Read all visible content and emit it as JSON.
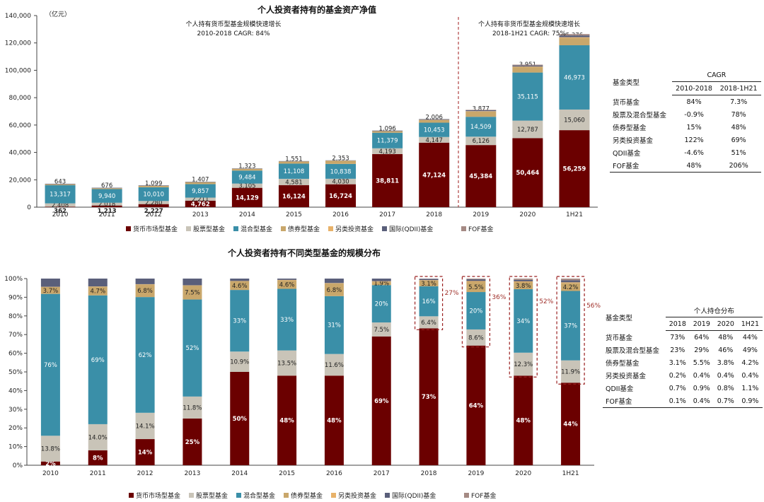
{
  "chart_data": [
    {
      "type": "bar",
      "stacked": true,
      "title": "个人投资者持有的基金资产净值",
      "unit_label": "（亿元）",
      "categories": [
        "2010",
        "2011",
        "2012",
        "2013",
        "2014",
        "2015",
        "2016",
        "2017",
        "2018",
        "2019",
        "2020",
        "1H21"
      ],
      "ylim": [
        0,
        140000
      ],
      "yticks": [
        "0",
        "20,000",
        "40,000",
        "60,000",
        "80,000",
        "100,000",
        "120,000",
        "140,000"
      ],
      "series": [
        {
          "name": "货币市场型基金",
          "color": "#6b0000",
          "values": [
            362,
            1213,
            2227,
            4762,
            14129,
            16124,
            16724,
            38811,
            47124,
            45384,
            50464,
            56259
          ],
          "labels": [
            "362",
            "1,213",
            "2,227",
            "4,762",
            "14,129",
            "16,124",
            "16,724",
            "38,811",
            "47,124",
            "45,384",
            "50,464",
            "56,259"
          ]
        },
        {
          "name": "股票型基金",
          "color": "#c9c4b8",
          "values": [
            2408,
            2018,
            2280,
            2211,
            3105,
            4581,
            4030,
            4193,
            4147,
            6126,
            12787,
            15060
          ],
          "labels": [
            "2,408",
            "2,018",
            "2,280",
            "2,211",
            "3,105",
            "4,581",
            "4,030",
            "4,193",
            "4,147",
            "6,126",
            "12,787",
            "15,060"
          ]
        },
        {
          "name": "混合型基金",
          "color": "#3a8fa8",
          "values": [
            13317,
            9940,
            10010,
            9857,
            9484,
            11108,
            10838,
            11379,
            10453,
            14509,
            35115,
            46973
          ],
          "labels": [
            "13,317",
            "9,940",
            "10,010",
            "9,857",
            "9,484",
            "11,108",
            "10,838",
            "11,379",
            "10,453",
            "14,509",
            "35,115",
            "46,973"
          ]
        },
        {
          "name": "债券型基金",
          "color": "#c9a76b",
          "values": [
            643,
            676,
            1099,
            1407,
            1323,
            1551,
            2353,
            1096,
            2006,
            3877,
            3951,
            5376
          ],
          "labels": [
            "643",
            "676",
            "1,099",
            "1,407",
            "1,323",
            "1,551",
            "2,353",
            "1,096",
            "2,006",
            "3,877",
            "3,951",
            "5,376"
          ]
        },
        {
          "name": "另类投资基金",
          "color": "#e8b26a",
          "values": [
            20,
            20,
            20,
            20,
            50,
            60,
            60,
            80,
            120,
            250,
            400,
            500
          ],
          "labels": []
        },
        {
          "name": "国际(QDII)基金",
          "color": "#5a5f7a",
          "values": [
            350,
            320,
            320,
            300,
            250,
            250,
            200,
            400,
            450,
            700,
            800,
            1300
          ],
          "labels": []
        },
        {
          "name": "FOF基金",
          "color": "#a58a84",
          "values": [
            0,
            0,
            0,
            0,
            0,
            0,
            0,
            20,
            70,
            300,
            600,
            1000
          ],
          "labels": []
        }
      ],
      "annotations": [
        {
          "text": "个人持有货币型基金规模快速增长",
          "sub": "2010-2018 CAGR: 84%"
        },
        {
          "text": "个人持有非货币型基金规模快速增长",
          "sub": "2018-1H21 CAGR: 75%"
        }
      ],
      "legend_position": "bottom"
    },
    {
      "type": "bar",
      "stacked": true,
      "percent": true,
      "title": "个人投资者持有不同类型基金的规模分布",
      "categories": [
        "2010",
        "2011",
        "2012",
        "2013",
        "2014",
        "2015",
        "2016",
        "2017",
        "2018",
        "2019",
        "2020",
        "1H21"
      ],
      "ylim": [
        0,
        100
      ],
      "yticks": [
        "0%",
        "10%",
        "20%",
        "30%",
        "40%",
        "50%",
        "60%",
        "70%",
        "80%",
        "90%",
        "100%"
      ],
      "series": [
        {
          "name": "货币市场型基金",
          "color": "#6b0000",
          "values": [
            2,
            8,
            14,
            25,
            50,
            48,
            48,
            69,
            73,
            64,
            48,
            44
          ],
          "labels": [
            "2%",
            "8%",
            "14%",
            "25%",
            "50%",
            "48%",
            "48%",
            "69%",
            "73%",
            "64%",
            "48%",
            "44%"
          ]
        },
        {
          "name": "股票型基金",
          "color": "#c9c4b8",
          "values": [
            13.8,
            14.0,
            14.1,
            11.8,
            10.9,
            13.5,
            11.6,
            7.5,
            6.4,
            8.6,
            12.3,
            11.9
          ],
          "labels": [
            "13.8%",
            "14.0%",
            "14.1%",
            "11.8%",
            "10.9%",
            "13.5%",
            "11.6%",
            "7.5%",
            "6.4%",
            "8.6%",
            "12.3%",
            "11.9%"
          ]
        },
        {
          "name": "混合型基金",
          "color": "#3a8fa8",
          "values": [
            76,
            69,
            62,
            52,
            33,
            33,
            31,
            20,
            16,
            20,
            34,
            37
          ],
          "labels": [
            "76%",
            "69%",
            "62%",
            "52%",
            "33%",
            "33%",
            "31%",
            "20%",
            "16%",
            "20%",
            "34%",
            "37%"
          ]
        },
        {
          "name": "债券型基金",
          "color": "#c9a76b",
          "values": [
            3.7,
            4.7,
            6.8,
            7.5,
            4.6,
            4.6,
            6.8,
            1.9,
            3.1,
            5.5,
            3.8,
            4.2
          ],
          "labels": [
            "3.7%",
            "4.7%",
            "6.8%",
            "7.5%",
            "4.6%",
            "4.6%",
            "6.8%",
            "1.9%",
            "3.1%",
            "5.5%",
            "3.8%",
            "4.2%"
          ]
        },
        {
          "name": "另类投资基金",
          "color": "#e8b26a",
          "values": [
            0.1,
            0.1,
            0.1,
            0.1,
            0.2,
            0.2,
            0.2,
            0.2,
            0.2,
            0.4,
            0.4,
            0.4
          ],
          "labels": []
        },
        {
          "name": "国际(QDII)基金",
          "color": "#5a5f7a",
          "values": [
            4.4,
            4.2,
            3.0,
            3.6,
            1.3,
            0.7,
            2.4,
            1.4,
            0.7,
            0.9,
            0.8,
            1.1
          ],
          "labels": []
        },
        {
          "name": "FOF基金",
          "color": "#a58a84",
          "values": [
            0,
            0,
            0,
            0,
            0,
            0,
            0,
            0,
            0.1,
            0.4,
            0.7,
            0.9
          ],
          "labels": []
        }
      ],
      "highlight_totals": [
        "27%",
        "36%",
        "52%",
        "56%"
      ],
      "legend_position": "bottom"
    }
  ],
  "table_cagr": {
    "col_type": "基金类型",
    "group": "CAGR",
    "headers": [
      "2010-2018",
      "2018-1H21"
    ],
    "rows": [
      {
        "name": "货币基金",
        "v": [
          "84%",
          "7.3%"
        ]
      },
      {
        "name": "股票及混合型基金",
        "v": [
          "-0.9%",
          "78%"
        ]
      },
      {
        "name": "债券型基金",
        "v": [
          "15%",
          "48%"
        ]
      },
      {
        "name": "另类投资基金",
        "v": [
          "122%",
          "69%"
        ]
      },
      {
        "name": "QDII基金",
        "v": [
          "-4.6%",
          "51%"
        ]
      },
      {
        "name": "FOF基金",
        "v": [
          "48%",
          "206%"
        ]
      }
    ]
  },
  "table_share": {
    "col_type": "基金类型",
    "group": "个人持仓分布",
    "headers": [
      "2018",
      "2019",
      "2020",
      "1H21"
    ],
    "rows": [
      {
        "name": "货币基金",
        "v": [
          "73%",
          "64%",
          "48%",
          "44%"
        ]
      },
      {
        "name": "股票及混合型基金",
        "v": [
          "23%",
          "29%",
          "46%",
          "49%"
        ]
      },
      {
        "name": "债券型基金",
        "v": [
          "3.1%",
          "5.5%",
          "3.8%",
          "4.2%"
        ]
      },
      {
        "name": "另类投资基金",
        "v": [
          "0.2%",
          "0.4%",
          "0.4%",
          "0.4%"
        ]
      },
      {
        "name": "QDII基金",
        "v": [
          "0.7%",
          "0.9%",
          "0.8%",
          "1.1%"
        ]
      },
      {
        "name": "FOF基金",
        "v": [
          "0.1%",
          "0.4%",
          "0.7%",
          "0.9%"
        ]
      }
    ]
  }
}
